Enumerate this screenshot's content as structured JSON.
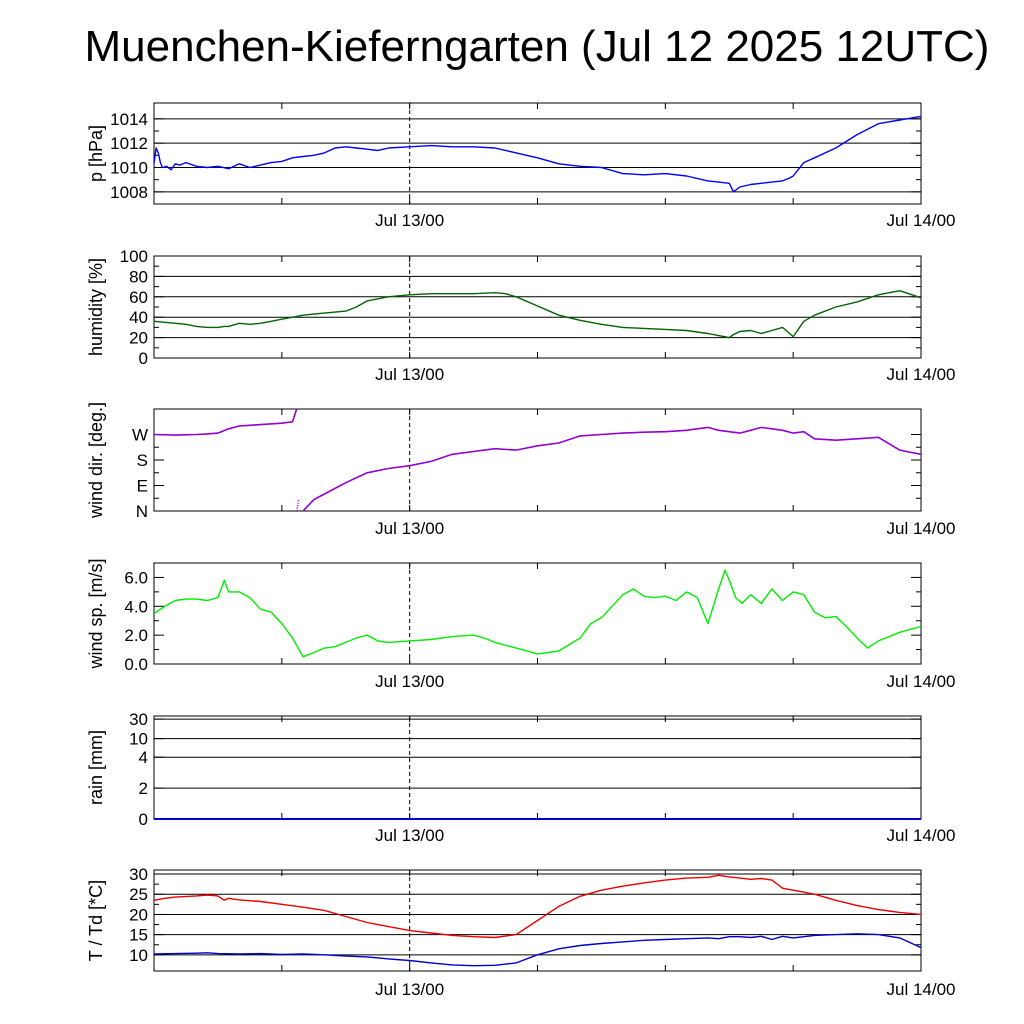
{
  "title": "Muenchen-Kieferngarten (Jul 12 2025 12UTC)",
  "chart_data": [
    {
      "type": "line",
      "name": "pressure",
      "ylabel": "p [hPa]",
      "ylim": [
        1007,
        1015.3
      ],
      "yticks": [
        1008,
        1010,
        1012,
        1014
      ],
      "ytick_labels": [
        "1008",
        "1010",
        "1012",
        "1014"
      ],
      "grid_y": [
        1008,
        1010,
        1012,
        1014
      ],
      "x_labels": [
        "Jul 13/00",
        "Jul 14/00"
      ],
      "x_range_hours": [
        0,
        36
      ],
      "color": "#0000ff",
      "series": [
        {
          "x": [
            0,
            0.1,
            0.2,
            0.3,
            0.4,
            0.6,
            0.8,
            1,
            1.2,
            1.5,
            2,
            2.5,
            3,
            3.5,
            4,
            4.5,
            5,
            5.5,
            6,
            6.5,
            7,
            7.5,
            8,
            8.5,
            9,
            9.5,
            10,
            10.5,
            11,
            12,
            13,
            14,
            15,
            16,
            17,
            18,
            19,
            20,
            21,
            22,
            23,
            24,
            25,
            26,
            26.5,
            27,
            27.2,
            27.5,
            28,
            28.5,
            29,
            29.5,
            29.8,
            30,
            30.5,
            31,
            32,
            33,
            34,
            35,
            36
          ],
          "y": [
            1010.3,
            1011.6,
            1011.2,
            1010.4,
            1010.0,
            1010.1,
            1009.8,
            1010.3,
            1010.2,
            1010.4,
            1010.1,
            1010.0,
            1010.1,
            1009.9,
            1010.3,
            1010.0,
            1010.2,
            1010.4,
            1010.5,
            1010.8,
            1010.9,
            1011.0,
            1011.2,
            1011.6,
            1011.7,
            1011.6,
            1011.5,
            1011.4,
            1011.6,
            1011.7,
            1011.8,
            1011.7,
            1011.7,
            1011.6,
            1011.2,
            1010.8,
            1010.3,
            1010.1,
            1010.0,
            1009.5,
            1009.4,
            1009.5,
            1009.3,
            1008.9,
            1008.8,
            1008.7,
            1008.0,
            1008.4,
            1008.6,
            1008.7,
            1008.8,
            1008.9,
            1009.1,
            1009.3,
            1010.4,
            1010.8,
            1011.6,
            1012.7,
            1013.6,
            1013.9,
            1014.2
          ]
        }
      ]
    },
    {
      "type": "line",
      "name": "humidity",
      "ylabel": "humidity [%]",
      "ylim": [
        0,
        100
      ],
      "yticks": [
        0,
        20,
        40,
        60,
        80,
        100
      ],
      "ytick_labels": [
        "0",
        "20",
        "40",
        "60",
        "80",
        "100"
      ],
      "grid_y": [
        20,
        40,
        60,
        80
      ],
      "x_labels": [
        "Jul 13/00",
        "Jul 14/00"
      ],
      "x_range_hours": [
        0,
        36
      ],
      "color": "#006400",
      "series": [
        {
          "x": [
            0,
            0.5,
            1,
            1.5,
            2,
            2.5,
            3,
            3.3,
            3.5,
            4,
            4.5,
            5,
            5.5,
            6,
            6.5,
            7,
            7.5,
            8,
            8.5,
            9,
            9.5,
            10,
            11,
            12,
            13,
            14,
            15,
            16,
            16.5,
            17,
            18,
            19,
            20,
            21,
            22,
            23,
            24,
            25,
            26,
            26.5,
            27,
            27.2,
            27.5,
            28,
            28.5,
            29,
            29.5,
            30,
            30.5,
            31,
            32,
            33,
            34,
            35,
            36
          ],
          "y": [
            36,
            35,
            34,
            33,
            31,
            30,
            30,
            31,
            31,
            34,
            33,
            34,
            36,
            38,
            40,
            42,
            43,
            44,
            45,
            46,
            50,
            56,
            60,
            62,
            63,
            63,
            63,
            64,
            63,
            60,
            51,
            42,
            37,
            33,
            30,
            29,
            28,
            27,
            24,
            22,
            20,
            23,
            26,
            27,
            24,
            27,
            30,
            21,
            36,
            42,
            50,
            55,
            62,
            66,
            59
          ]
        }
      ]
    },
    {
      "type": "scatter",
      "name": "wind direction",
      "ylabel": "wind dir. [deg.]",
      "ylim": [
        0,
        360
      ],
      "yticks": [
        0,
        90,
        180,
        270
      ],
      "ytick_labels": [
        "N",
        "E",
        "S",
        "W"
      ],
      "grid_y": [],
      "x_labels": [
        "Jul 13/00",
        "Jul 14/00"
      ],
      "x_range_hours": [
        0,
        36
      ],
      "color": "#9400d3",
      "series": [
        {
          "x": [
            0,
            1,
            2,
            2.5,
            3,
            3.5,
            4,
            5,
            6,
            6.5,
            6.7,
            7,
            7.5,
            8,
            9,
            10,
            11,
            12,
            13,
            14,
            15,
            16,
            17,
            18,
            19,
            20,
            21,
            22,
            23,
            24,
            25,
            25.5,
            26,
            26.5,
            27,
            27.5,
            28,
            28.5,
            29,
            29.5,
            30,
            30.5,
            31,
            32,
            33,
            34,
            35,
            36
          ],
          "y": [
            270,
            268,
            270,
            272,
            275,
            290,
            300,
            305,
            310,
            315,
            360,
            0,
            40,
            60,
            100,
            135,
            150,
            160,
            175,
            200,
            210,
            220,
            215,
            230,
            240,
            265,
            270,
            275,
            278,
            280,
            285,
            290,
            295,
            285,
            280,
            275,
            285,
            295,
            290,
            285,
            275,
            280,
            255,
            250,
            255,
            260,
            215,
            200
          ]
        }
      ]
    },
    {
      "type": "line",
      "name": "wind speed",
      "ylabel": "wind sp. [m/s]",
      "ylim": [
        0,
        7
      ],
      "yticks": [
        0,
        2,
        4,
        6
      ],
      "ytick_labels": [
        "0.0",
        "2.0",
        "4.0",
        "6.0"
      ],
      "grid_y": [],
      "x_labels": [
        "Jul 13/00",
        "Jul 14/00"
      ],
      "x_range_hours": [
        0,
        36
      ],
      "color": "#00ee00",
      "series": [
        {
          "x": [
            0,
            0.5,
            1,
            1.5,
            2,
            2.5,
            3,
            3.3,
            3.5,
            4,
            4.5,
            5,
            5.5,
            6,
            6.5,
            7,
            7.5,
            8,
            8.5,
            9,
            9.5,
            10,
            10.5,
            11,
            12,
            13,
            14,
            15,
            15.5,
            16,
            17,
            18,
            19,
            20,
            20.5,
            21,
            21.5,
            22,
            22.5,
            23,
            23.5,
            24,
            24.5,
            25,
            25.5,
            26,
            26.5,
            26.8,
            27,
            27.3,
            27.6,
            28,
            28.5,
            29,
            29.5,
            30,
            30.5,
            31,
            31.5,
            32,
            32.5,
            33,
            33.5,
            34,
            35,
            36
          ],
          "y": [
            3.5,
            4.0,
            4.4,
            4.5,
            4.5,
            4.4,
            4.6,
            5.8,
            5.0,
            5.0,
            4.6,
            3.8,
            3.6,
            2.8,
            1.8,
            0.5,
            0.8,
            1.1,
            1.2,
            1.5,
            1.8,
            2.0,
            1.6,
            1.5,
            1.6,
            1.7,
            1.9,
            2.0,
            1.8,
            1.5,
            1.1,
            0.7,
            0.9,
            1.8,
            2.8,
            3.2,
            4.0,
            4.8,
            5.2,
            4.7,
            4.6,
            4.7,
            4.4,
            5.0,
            4.6,
            2.8,
            5.2,
            6.5,
            5.8,
            4.6,
            4.2,
            4.8,
            4.2,
            5.2,
            4.4,
            5.0,
            4.8,
            3.6,
            3.2,
            3.3,
            2.6,
            1.8,
            1.1,
            1.6,
            2.2,
            2.6
          ]
        }
      ]
    },
    {
      "type": "line",
      "name": "rain",
      "ylabel": "rain [mm]",
      "ylim": [
        0,
        30
      ],
      "yticks": [
        0,
        2,
        4,
        10,
        30
      ],
      "ytick_labels": [
        "0",
        "2",
        "4",
        "10",
        "30"
      ],
      "grid_y": [
        2,
        4,
        10,
        30
      ],
      "x_labels": [
        "Jul 13/00",
        "Jul 14/00"
      ],
      "x_range_hours": [
        0,
        36
      ],
      "color": "#0000cc",
      "series": [
        {
          "x": [
            0,
            36
          ],
          "y": [
            0,
            0
          ]
        }
      ]
    },
    {
      "type": "line",
      "name": "temperature",
      "ylabel": "T / Td [*C]",
      "ylim": [
        6,
        31
      ],
      "yticks": [
        10,
        15,
        20,
        25,
        30
      ],
      "ytick_labels": [
        "10",
        "15",
        "20",
        "25",
        "30"
      ],
      "grid_y": [
        10,
        15,
        20,
        25,
        30
      ],
      "x_labels": [
        "Jul 13/00",
        "Jul 14/00"
      ],
      "x_range_hours": [
        0,
        36
      ],
      "series": [
        {
          "color": "#ee0000",
          "x": [
            0,
            0.5,
            1,
            2,
            2.5,
            3,
            3.3,
            3.5,
            4,
            5,
            6,
            7,
            8,
            9,
            10,
            11,
            12,
            13,
            14,
            15,
            16,
            17,
            18,
            19,
            20,
            21,
            22,
            23,
            24,
            25,
            26,
            26.5,
            27,
            27.5,
            28,
            28.5,
            29,
            29.5,
            30,
            31,
            32,
            33,
            34,
            35,
            36
          ],
          "y": [
            23.5,
            24.0,
            24.3,
            24.6,
            24.8,
            24.6,
            23.5,
            24.0,
            23.6,
            23.2,
            22.5,
            21.8,
            21.0,
            19.5,
            18.0,
            17.0,
            16.0,
            15.4,
            14.8,
            14.5,
            14.3,
            15.0,
            18.5,
            22.0,
            24.5,
            26.0,
            27.0,
            27.8,
            28.5,
            29.0,
            29.2,
            29.7,
            29.3,
            29.0,
            28.7,
            28.9,
            28.5,
            26.5,
            26.0,
            25.0,
            23.5,
            22.2,
            21.2,
            20.5,
            20.0
          ]
        },
        {
          "color": "#0000cc",
          "x": [
            0,
            1,
            2,
            2.5,
            3,
            4,
            5,
            6,
            7,
            8,
            9,
            10,
            11,
            12,
            13,
            14,
            15,
            16,
            17,
            18,
            19,
            20,
            21,
            22,
            23,
            24,
            25,
            26,
            26.5,
            27,
            27.5,
            28,
            28.5,
            29,
            29.5,
            30,
            31,
            32,
            33,
            34,
            35,
            36
          ],
          "y": [
            10.2,
            10.3,
            10.4,
            10.5,
            10.3,
            10.2,
            10.3,
            10.1,
            10.2,
            10.0,
            9.7,
            9.5,
            9.0,
            8.6,
            8.0,
            7.5,
            7.3,
            7.4,
            8.0,
            10.0,
            11.5,
            12.3,
            12.8,
            13.2,
            13.6,
            13.8,
            14.0,
            14.2,
            14.0,
            14.5,
            14.5,
            14.3,
            14.6,
            13.8,
            14.6,
            14.2,
            14.8,
            15.0,
            15.2,
            15.0,
            14.2,
            11.8
          ]
        }
      ]
    }
  ]
}
